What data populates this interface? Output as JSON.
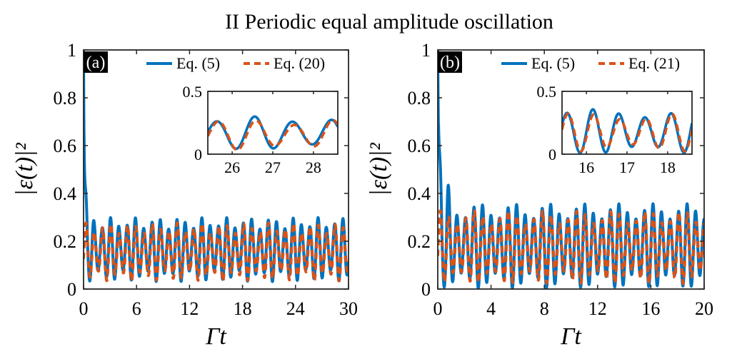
{
  "figure": {
    "title": "II Periodic equal amplitude oscillation",
    "ylabel": "|ε(t)|²",
    "xlabel": "Γt"
  },
  "colors": {
    "solid": "#0072BD",
    "dashed": "#D95319"
  },
  "chart_data": [
    {
      "type": "line",
      "panel": "(a)",
      "xlabel": "Γt",
      "ylabel": "|ε(t)|²",
      "xlim": [
        0,
        30
      ],
      "ylim": [
        0,
        1
      ],
      "xticks": [
        0,
        6,
        12,
        18,
        24,
        30
      ],
      "yticks": [
        0,
        0.2,
        0.4,
        0.6,
        0.8,
        1
      ],
      "ytick_labels": [
        "0",
        "0.2",
        "0.4",
        "0.6",
        "0.8",
        "1"
      ],
      "legend": {
        "position": "top-right",
        "entries": [
          "Eq. (5)",
          "Eq. (20)"
        ]
      },
      "series": [
        {
          "name": "Eq. (5)",
          "style": "solid",
          "initial": 1.0,
          "mean": 0.165,
          "amplitude": 0.11,
          "period": 0.94,
          "transient": [
            0.36,
            0.02
          ]
        },
        {
          "name": "Eq. (20)",
          "style": "dashed",
          "mean": 0.155,
          "amplitude": 0.1,
          "period": 0.94
        }
      ],
      "inset": {
        "xlim": [
          25.4,
          28.6
        ],
        "ylim": [
          0,
          0.5
        ],
        "xticks": [
          26,
          27,
          28
        ],
        "yticks": [
          0,
          0.5
        ],
        "ytick_labels": [
          "0",
          "0.5"
        ],
        "series": [
          {
            "name": "Eq. (5)",
            "mean": 0.165,
            "amplitude": 0.11,
            "period": 0.94
          },
          {
            "name": "Eq. (20)",
            "mean": 0.155,
            "amplitude": 0.1,
            "period": 0.94
          }
        ]
      }
    },
    {
      "type": "line",
      "panel": "(b)",
      "xlabel": "Γt",
      "ylabel": "|ε(t)|²",
      "xlim": [
        0,
        20
      ],
      "ylim": [
        0,
        1
      ],
      "xticks": [
        0,
        4,
        8,
        12,
        16,
        20
      ],
      "yticks": [
        0,
        0.2,
        0.4,
        0.6,
        0.8,
        1
      ],
      "ytick_labels": [
        "0",
        "0.2",
        "0.4",
        "0.6",
        "0.8",
        "1"
      ],
      "legend": {
        "position": "top-right",
        "entries": [
          "Eq. (5)",
          "Eq. (21)"
        ]
      },
      "series": [
        {
          "name": "Eq. (5)",
          "style": "solid",
          "initial": 1.0,
          "mean": 0.18,
          "amplitude": 0.145,
          "period": 0.64,
          "transient": [
            0.46,
            0.04
          ]
        },
        {
          "name": "Eq. (21)",
          "style": "dashed",
          "mean": 0.175,
          "amplitude": 0.125,
          "period": 0.64
        }
      ],
      "inset": {
        "xlim": [
          15.4,
          18.6
        ],
        "ylim": [
          0,
          0.5
        ],
        "xticks": [
          16,
          17,
          18
        ],
        "yticks": [
          0,
          0.5
        ],
        "ytick_labels": [
          "0",
          "0.5"
        ],
        "series": [
          {
            "name": "Eq. (5)",
            "mean": 0.18,
            "amplitude": 0.145,
            "period": 0.64
          },
          {
            "name": "Eq. (21)",
            "mean": 0.175,
            "amplitude": 0.125,
            "period": 0.64
          }
        ]
      }
    }
  ]
}
